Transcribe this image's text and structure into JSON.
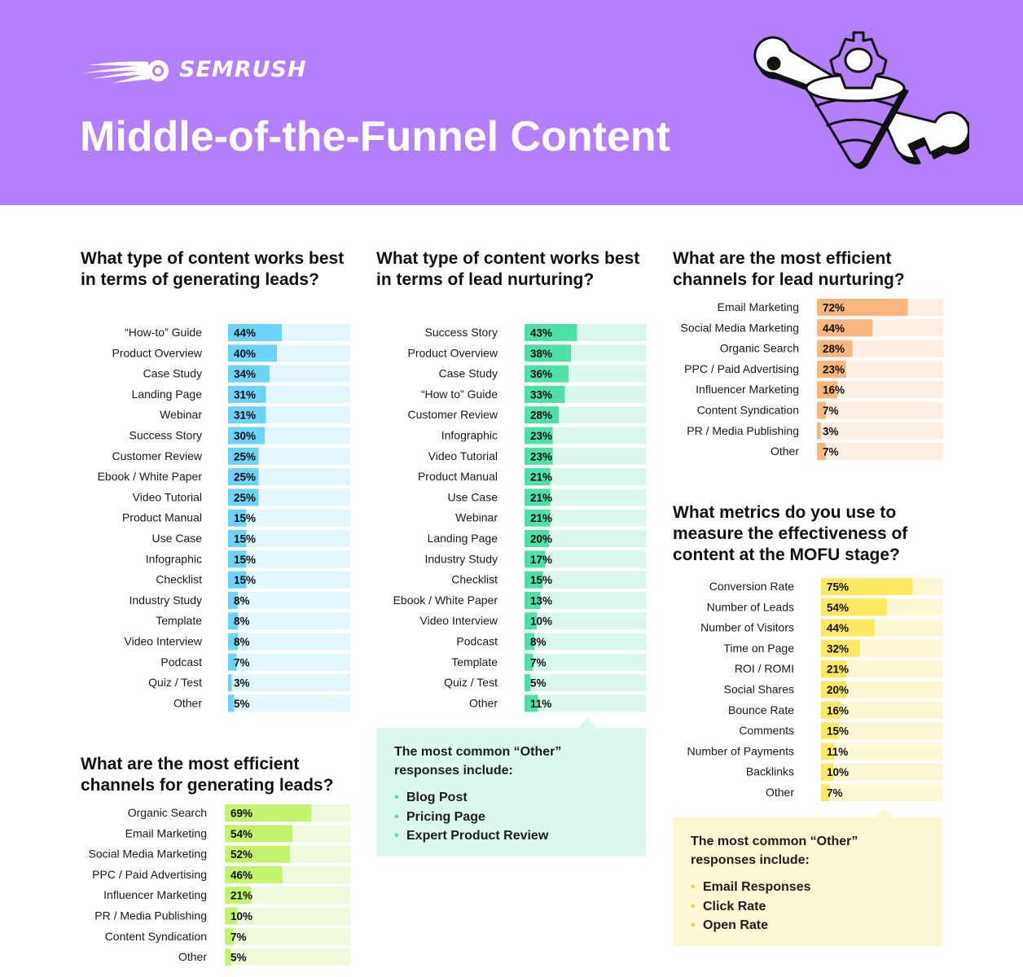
{
  "brand": {
    "name": "SEMRUSH"
  },
  "title": "Middle-of-the-Funnel Content",
  "colors": {
    "header_bg": "#b27ffd",
    "blue": "#6dd3fb",
    "blue_bg": "#e2f6fe",
    "green": "#4ee0a8",
    "green_bg": "#dcf8ec",
    "lime": "#c3f26c",
    "lime_bg": "#eefadb",
    "orange": "#fcb57c",
    "orange_bg": "#feeee2",
    "yellow": "#fde862",
    "yellow_bg": "#fef7d4"
  },
  "chart_data": [
    {
      "type": "bar",
      "title": "What type of content works best in terms of generating leads?",
      "categories": [
        "“How-to” Guide",
        "Product Overview",
        "Case Study",
        "Landing Page",
        "Webinar",
        "Success Story",
        "Customer Review",
        "Ebook / White Paper",
        "Video Tutorial",
        "Product Manual",
        "Use Case",
        "Infographic",
        "Checklist",
        "Industry Study",
        "Template",
        "Video Interview",
        "Podcast",
        "Quiz / Test",
        "Other"
      ],
      "values": [
        44,
        40,
        34,
        31,
        31,
        30,
        25,
        25,
        25,
        15,
        15,
        15,
        15,
        8,
        8,
        8,
        7,
        3,
        5
      ],
      "value_labels": [
        "44%",
        "40%",
        "34%",
        "31%",
        "31%",
        "30%",
        "25%",
        "25%",
        "25%",
        "15%",
        "15%",
        "15%",
        "15%",
        "8%",
        "8%",
        "8%",
        "7%",
        "3%",
        "5%"
      ],
      "xlim": [
        0,
        100
      ],
      "color": "blue"
    },
    {
      "type": "bar",
      "title": "What type of content works best in terms of lead nurturing?",
      "categories": [
        "Success Story",
        "Product Overview",
        "Case Study",
        "“How to” Guide",
        "Customer Review",
        "Infographic",
        "Video Tutorial",
        "Product Manual",
        "Use Case",
        "Webinar",
        "Landing Page",
        "Industry Study",
        "Checklist",
        "Ebook / White Paper",
        "Video Interview",
        "Podcast",
        "Template",
        "Quiz / Test",
        "Other"
      ],
      "values": [
        43,
        38,
        36,
        33,
        28,
        23,
        23,
        21,
        21,
        21,
        20,
        17,
        15,
        13,
        10,
        8,
        7,
        5,
        11
      ],
      "value_labels": [
        "43%",
        "38%",
        "36%",
        "33%",
        "28%",
        "23%",
        "23%",
        "21%",
        "21%",
        "21%",
        "20%",
        "17%",
        "15%",
        "13%",
        "10%",
        "8%",
        "7%",
        "5%",
        "11%"
      ],
      "xlim": [
        0,
        100
      ],
      "color": "green"
    },
    {
      "type": "bar",
      "title": "What are the most efficient channels for lead nurturing?",
      "categories": [
        "Email Marketing",
        "Social Media Marketing",
        "Organic Search",
        "PPC / Paid Advertising",
        "Influencer Marketing",
        "Content Syndication",
        "PR / Media Publishing",
        "Other"
      ],
      "values": [
        72,
        44,
        28,
        23,
        16,
        7,
        3,
        7
      ],
      "value_labels": [
        "72%",
        "44%",
        "28%",
        "23%",
        "16%",
        "7%",
        "3%",
        "7%"
      ],
      "xlim": [
        0,
        100
      ],
      "color": "orange"
    },
    {
      "type": "bar",
      "title": "What metrics do you use to measure the effectiveness of content at the MOFU stage?",
      "categories": [
        "Conversion Rate",
        "Number of Leads",
        "Number of Visitors",
        "Time on Page",
        "ROI / ROMI",
        "Social Shares",
        "Bounce Rate",
        "Comments",
        "Number of Payments",
        "Backlinks",
        "Other"
      ],
      "values": [
        75,
        54,
        44,
        32,
        21,
        20,
        16,
        15,
        11,
        10,
        7
      ],
      "value_labels": [
        "75%",
        "54%",
        "44%",
        "32%",
        "21%",
        "20%",
        "16%",
        "15%",
        "11%",
        "10%",
        "7%"
      ],
      "xlim": [
        0,
        100
      ],
      "color": "yellow"
    },
    {
      "type": "bar",
      "title": "What are the most efficient channels for generating leads?",
      "categories": [
        "Organic Search",
        "Email Marketing",
        "Social Media Marketing",
        "PPC / Paid Advertising",
        "Influencer Marketing",
        "PR / Media Publishing",
        "Content Syndication",
        "Other"
      ],
      "values": [
        69,
        54,
        52,
        46,
        21,
        10,
        7,
        5
      ],
      "value_labels": [
        "69%",
        "54%",
        "52%",
        "46%",
        "21%",
        "10%",
        "7%",
        "5%"
      ],
      "xlim": [
        0,
        100
      ],
      "color": "lime"
    }
  ],
  "callouts": {
    "nurturing_other": {
      "title": "The most common “Other” responses include:",
      "items": [
        "Blog Post",
        "Pricing Page",
        "Expert Product Review"
      ]
    },
    "mofu_other": {
      "title": "The most common “Other” responses include:",
      "items": [
        "Email Responses",
        "Click Rate",
        "Open Rate"
      ]
    }
  }
}
